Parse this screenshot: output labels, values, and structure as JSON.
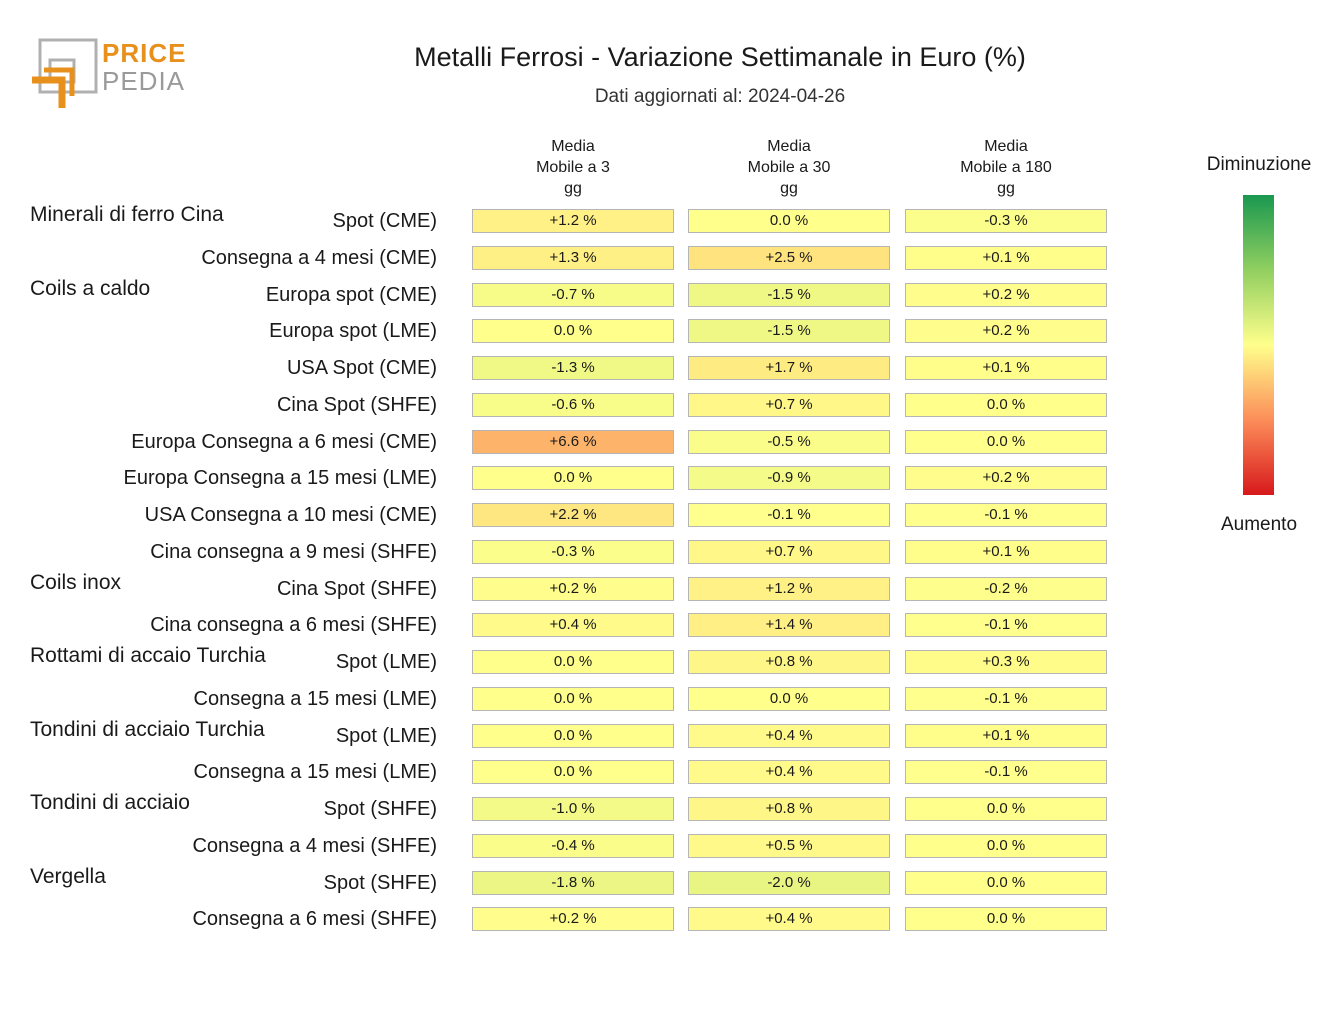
{
  "logo": {
    "line1": "PRICE",
    "line2": "PEDIA"
  },
  "title": "Metalli Ferrosi - Variazione Settimanale in Euro (%)",
  "subtitle": "Dati aggiornati al: 2024-04-26",
  "legend": {
    "top": "Diminuzione",
    "bottom": "Aumento",
    "colors": [
      "#1a9850",
      "#91cf60",
      "#ffff8c",
      "#fc8d59",
      "#d7191c"
    ]
  },
  "chart_data": {
    "type": "heatmap",
    "columns": [
      "Media\nMobile a 3\ngg",
      "Media\nMobile a 30\ngg",
      "Media\nMobile a 180\ngg"
    ],
    "rows": [
      {
        "group": "Minerali di ferro Cina",
        "label": "Spot (CME)",
        "values": [
          1.2,
          0.0,
          -0.3
        ],
        "display": [
          "+1.2 %",
          "0.0 %",
          "-0.3 %"
        ]
      },
      {
        "group": "",
        "label": "Consegna a 4 mesi (CME)",
        "values": [
          1.3,
          2.5,
          0.1
        ],
        "display": [
          "+1.3 %",
          "+2.5 %",
          "+0.1 %"
        ]
      },
      {
        "group": "Coils a caldo",
        "label": "Europa spot (CME)",
        "values": [
          -0.7,
          -1.5,
          0.2
        ],
        "display": [
          "-0.7 %",
          "-1.5 %",
          "+0.2 %"
        ]
      },
      {
        "group": "",
        "label": "Europa spot (LME)",
        "values": [
          0.0,
          -1.5,
          0.2
        ],
        "display": [
          "0.0 %",
          "-1.5 %",
          "+0.2 %"
        ]
      },
      {
        "group": "",
        "label": "USA Spot (CME)",
        "values": [
          -1.3,
          1.7,
          0.1
        ],
        "display": [
          "-1.3 %",
          "+1.7 %",
          "+0.1 %"
        ]
      },
      {
        "group": "",
        "label": "Cina Spot (SHFE)",
        "values": [
          -0.6,
          0.7,
          0.0
        ],
        "display": [
          "-0.6 %",
          "+0.7 %",
          "0.0 %"
        ]
      },
      {
        "group": "",
        "label": "Europa Consegna a 6 mesi (CME)",
        "values": [
          6.6,
          -0.5,
          0.0
        ],
        "display": [
          "+6.6 %",
          "-0.5 %",
          "0.0 %"
        ]
      },
      {
        "group": "",
        "label": "Europa Consegna a 15 mesi (LME)",
        "values": [
          0.0,
          -0.9,
          0.2
        ],
        "display": [
          "0.0 %",
          "-0.9 %",
          "+0.2 %"
        ]
      },
      {
        "group": "",
        "label": "USA Consegna a 10 mesi (CME)",
        "values": [
          2.2,
          -0.1,
          -0.1
        ],
        "display": [
          "+2.2 %",
          "-0.1 %",
          "-0.1 %"
        ]
      },
      {
        "group": "",
        "label": "Cina consegna a 9 mesi (SHFE)",
        "values": [
          -0.3,
          0.7,
          0.1
        ],
        "display": [
          "-0.3 %",
          "+0.7 %",
          "+0.1 %"
        ]
      },
      {
        "group": "Coils inox",
        "label": "Cina Spot (SHFE)",
        "values": [
          0.2,
          1.2,
          -0.2
        ],
        "display": [
          "+0.2 %",
          "+1.2 %",
          "-0.2 %"
        ]
      },
      {
        "group": "",
        "label": "Cina consegna a 6 mesi (SHFE)",
        "values": [
          0.4,
          1.4,
          -0.1
        ],
        "display": [
          "+0.4 %",
          "+1.4 %",
          "-0.1 %"
        ]
      },
      {
        "group": "Rottami di accaio Turchia",
        "label": "Spot (LME)",
        "values": [
          0.0,
          0.8,
          0.3
        ],
        "display": [
          "0.0 %",
          "+0.8 %",
          "+0.3 %"
        ]
      },
      {
        "group": "",
        "label": "Consegna a 15 mesi (LME)",
        "values": [
          0.0,
          0.0,
          -0.1
        ],
        "display": [
          "0.0 %",
          "0.0 %",
          "-0.1 %"
        ]
      },
      {
        "group": "Tondini di acciaio Turchia",
        "label": "Spot (LME)",
        "values": [
          0.0,
          0.4,
          0.1
        ],
        "display": [
          "0.0 %",
          "+0.4 %",
          "+0.1 %"
        ]
      },
      {
        "group": "",
        "label": "Consegna a 15 mesi (LME)",
        "values": [
          0.0,
          0.4,
          -0.1
        ],
        "display": [
          "0.0 %",
          "+0.4 %",
          "-0.1 %"
        ]
      },
      {
        "group": "Tondini di acciaio",
        "label": "Spot (SHFE)",
        "values": [
          -1.0,
          0.8,
          0.0
        ],
        "display": [
          "-1.0 %",
          "+0.8 %",
          "0.0 %"
        ]
      },
      {
        "group": "",
        "label": "Consegna a 4 mesi (SHFE)",
        "values": [
          -0.4,
          0.5,
          0.0
        ],
        "display": [
          "-0.4 %",
          "+0.5 %",
          "0.0 %"
        ]
      },
      {
        "group": "Vergella",
        "label": "Spot (SHFE)",
        "values": [
          -1.8,
          -2.0,
          0.0
        ],
        "display": [
          "-1.8 %",
          "-2.0 %",
          "0.0 %"
        ]
      },
      {
        "group": "",
        "label": "Consegna a 6 mesi (SHFE)",
        "values": [
          0.2,
          0.4,
          0.0
        ],
        "display": [
          "+0.2 %",
          "+0.4 %",
          "0.0 %"
        ]
      }
    ]
  }
}
